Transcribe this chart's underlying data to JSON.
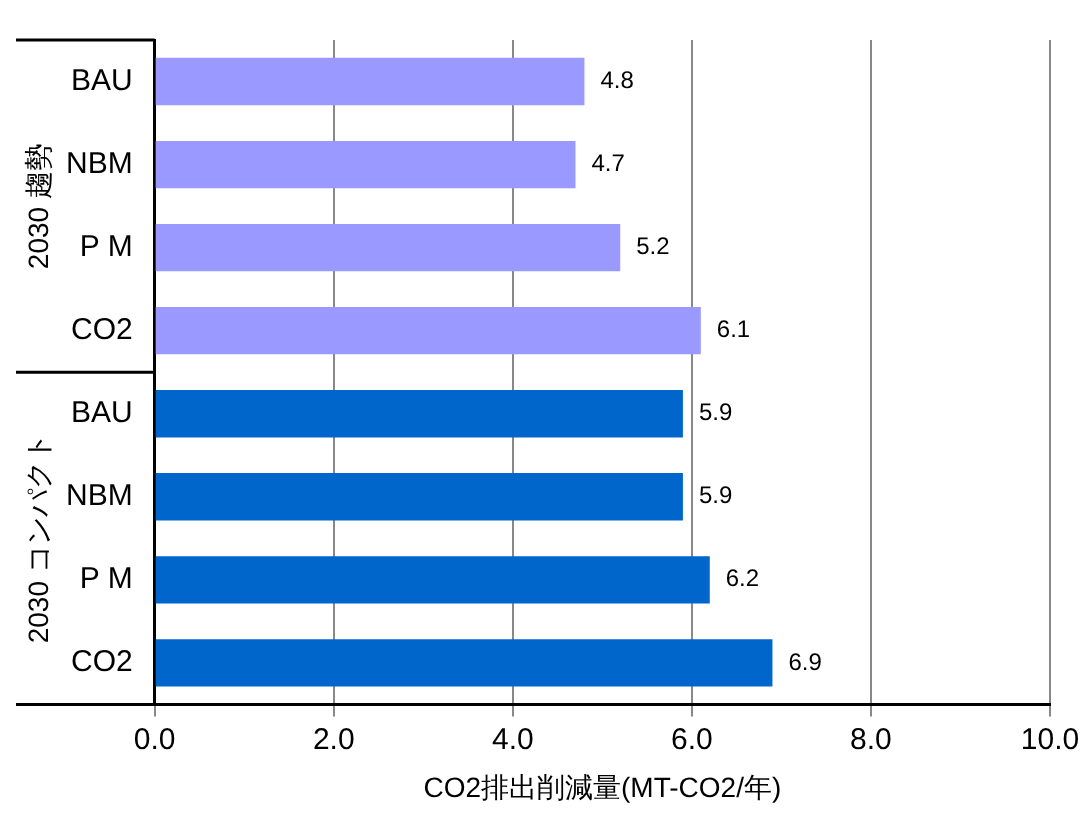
{
  "chart_data": {
    "type": "bar",
    "orientation": "horizontal",
    "xlabel": "CO2排出削減量(MT-CO2/年)",
    "categories": [
      "BAU",
      "NBM",
      "P M",
      "CO2",
      "BAU",
      "NBM",
      "P M",
      "CO2"
    ],
    "values": [
      4.8,
      4.7,
      5.2,
      6.1,
      5.9,
      5.9,
      6.2,
      6.9
    ],
    "colors": [
      "#9999ff",
      "#9999ff",
      "#9999ff",
      "#9999ff",
      "#0066cc",
      "#0066cc",
      "#0066cc",
      "#0066cc"
    ],
    "xlim": [
      0,
      10
    ],
    "xticks": [
      {
        "value": 0,
        "label": "0.0"
      },
      {
        "value": 2,
        "label": "2.0"
      },
      {
        "value": 4,
        "label": "4.0"
      },
      {
        "value": 6,
        "label": "6.0"
      },
      {
        "value": 8,
        "label": "8.0"
      },
      {
        "value": 10,
        "label": "10.0"
      }
    ],
    "annotations": [
      "2030 趨勢",
      "2030 コンパクト"
    ],
    "grid": "x",
    "data_labels": true,
    "legend": false
  }
}
